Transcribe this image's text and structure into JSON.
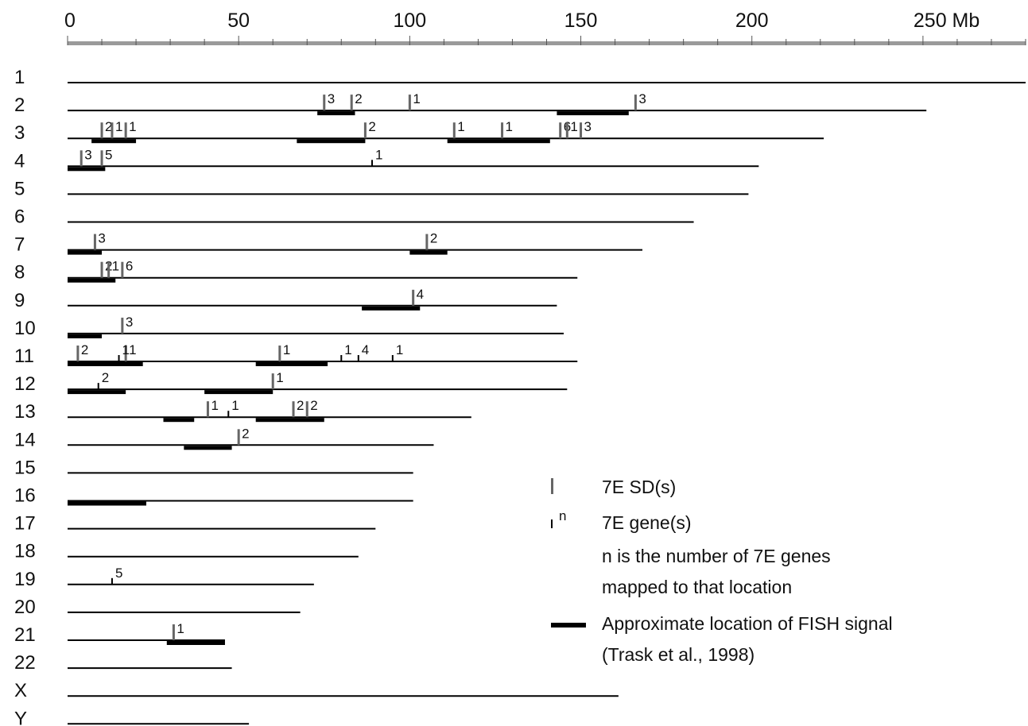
{
  "chart_data": {
    "type": "diagram",
    "x_axis": {
      "min": 0,
      "max": 280,
      "ticks": [
        {
          "value": 0,
          "label": "0"
        },
        {
          "value": 50,
          "label": "50"
        },
        {
          "value": 100,
          "label": "100"
        },
        {
          "value": 150,
          "label": "150"
        },
        {
          "value": 200,
          "label": "200"
        },
        {
          "value": 250,
          "label": "250 Mb"
        }
      ]
    },
    "chromosomes": [
      {
        "name": "1",
        "length": 280,
        "fish": [],
        "sd": [],
        "genes": []
      },
      {
        "name": "2",
        "length": 251,
        "fish": [
          [
            73,
            84
          ],
          [
            143,
            164
          ]
        ],
        "sd": [
          {
            "pos": 75,
            "count": "3"
          },
          {
            "pos": 83,
            "count": "2"
          },
          {
            "pos": 100,
            "count": "1"
          },
          {
            "pos": 166,
            "count": "3"
          }
        ],
        "genes": []
      },
      {
        "name": "3",
        "length": 221,
        "fish": [
          [
            7,
            20
          ],
          [
            67,
            87
          ],
          [
            111,
            141
          ]
        ],
        "sd": [
          {
            "pos": 10,
            "count": "2"
          },
          {
            "pos": 13,
            "count": "1"
          },
          {
            "pos": 17,
            "count": "1"
          },
          {
            "pos": 87,
            "count": "2"
          },
          {
            "pos": 113,
            "count": "1"
          },
          {
            "pos": 127,
            "count": "1"
          },
          {
            "pos": 144,
            "count": "6"
          },
          {
            "pos": 146,
            "count": "1"
          },
          {
            "pos": 150,
            "count": "3"
          }
        ],
        "genes": []
      },
      {
        "name": "4",
        "length": 202,
        "fish": [
          [
            0,
            11
          ]
        ],
        "sd": [
          {
            "pos": 4,
            "count": "3"
          },
          {
            "pos": 10,
            "count": "5"
          }
        ],
        "genes": [
          {
            "pos": 89,
            "count": "1"
          }
        ]
      },
      {
        "name": "5",
        "length": 199,
        "fish": [],
        "sd": [],
        "genes": []
      },
      {
        "name": "6",
        "length": 183,
        "fish": [],
        "sd": [],
        "genes": []
      },
      {
        "name": "7",
        "length": 168,
        "fish": [
          [
            0,
            10
          ],
          [
            100,
            111
          ]
        ],
        "sd": [
          {
            "pos": 8,
            "count": "3"
          },
          {
            "pos": 105,
            "count": "2"
          }
        ],
        "genes": []
      },
      {
        "name": "8",
        "length": 149,
        "fish": [
          [
            0,
            14
          ]
        ],
        "sd": [
          {
            "pos": 10,
            "count": "2"
          },
          {
            "pos": 12,
            "count": "1"
          },
          {
            "pos": 16,
            "count": "6"
          }
        ],
        "genes": []
      },
      {
        "name": "9",
        "length": 143,
        "fish": [
          [
            86,
            103
          ]
        ],
        "sd": [
          {
            "pos": 101,
            "count": "4"
          }
        ],
        "genes": []
      },
      {
        "name": "10",
        "length": 145,
        "fish": [
          [
            0,
            10
          ]
        ],
        "sd": [
          {
            "pos": 16,
            "count": "3"
          }
        ],
        "genes": []
      },
      {
        "name": "11",
        "length": 149,
        "fish": [
          [
            0,
            22
          ],
          [
            55,
            76
          ]
        ],
        "sd": [
          {
            "pos": 3,
            "count": "2"
          },
          {
            "pos": 17,
            "count": "1"
          },
          {
            "pos": 62,
            "count": "1"
          }
        ],
        "genes": [
          {
            "pos": 15,
            "count": "1"
          },
          {
            "pos": 80,
            "count": "1"
          },
          {
            "pos": 85,
            "count": "4"
          },
          {
            "pos": 95,
            "count": "1"
          }
        ]
      },
      {
        "name": "12",
        "length": 146,
        "fish": [
          [
            0,
            17
          ],
          [
            40,
            60
          ]
        ],
        "sd": [
          {
            "pos": 60,
            "count": "1"
          }
        ],
        "genes": [
          {
            "pos": 9,
            "count": "2"
          }
        ]
      },
      {
        "name": "13",
        "length": 118,
        "fish": [
          [
            28,
            37
          ],
          [
            55,
            75
          ]
        ],
        "sd": [
          {
            "pos": 41,
            "count": "1"
          },
          {
            "pos": 66,
            "count": "2"
          },
          {
            "pos": 70,
            "count": "2"
          }
        ],
        "genes": [
          {
            "pos": 47,
            "count": "1"
          }
        ]
      },
      {
        "name": "14",
        "length": 107,
        "fish": [
          [
            34,
            48
          ]
        ],
        "sd": [
          {
            "pos": 50,
            "count": "2"
          }
        ],
        "genes": []
      },
      {
        "name": "15",
        "length": 101,
        "fish": [],
        "sd": [],
        "genes": []
      },
      {
        "name": "16",
        "length": 101,
        "fish": [
          [
            0,
            23
          ]
        ],
        "sd": [],
        "genes": []
      },
      {
        "name": "17",
        "length": 90,
        "fish": [],
        "sd": [],
        "genes": []
      },
      {
        "name": "18",
        "length": 85,
        "fish": [],
        "sd": [],
        "genes": []
      },
      {
        "name": "19",
        "length": 72,
        "fish": [],
        "sd": [],
        "genes": [
          {
            "pos": 13,
            "count": "5"
          }
        ]
      },
      {
        "name": "20",
        "length": 68,
        "fish": [],
        "sd": [],
        "genes": []
      },
      {
        "name": "21",
        "length": 46,
        "fish": [
          [
            29,
            46
          ]
        ],
        "sd": [
          {
            "pos": 31,
            "count": "1"
          }
        ],
        "genes": []
      },
      {
        "name": "22",
        "length": 48,
        "fish": [],
        "sd": [],
        "genes": []
      },
      {
        "name": "X",
        "length": 161,
        "fish": [],
        "sd": [],
        "genes": []
      },
      {
        "name": "Y",
        "length": 53,
        "fish": [],
        "sd": [],
        "genes": []
      }
    ],
    "legend": {
      "sd_label": "7E SD(s)",
      "gene_superscript": "n",
      "gene_label": "7E gene(s)",
      "gene_note_line1": "n is the number of 7E genes",
      "gene_note_line2": "mapped to that location",
      "fish_label_line1": "Approximate location of FISH signal",
      "fish_label_line2": "(Trask et al., 1998)"
    },
    "colors": {
      "line": "#000000",
      "sd_mark": "#666666",
      "gene_mark": "#000000",
      "ruler": "#9a9a9a"
    }
  }
}
